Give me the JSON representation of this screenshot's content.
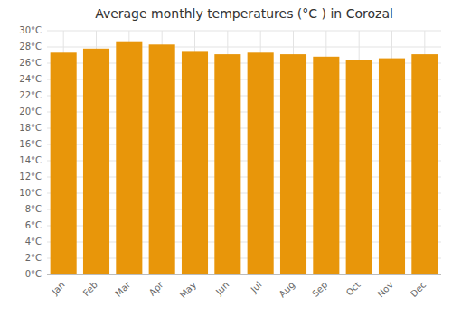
{
  "chart_data": {
    "type": "bar",
    "title": "Average monthly temperatures (°C ) in Corozal",
    "categories": [
      "Jan",
      "Feb",
      "Mar",
      "Apr",
      "May",
      "Jun",
      "Jul",
      "Aug",
      "Sep",
      "Oct",
      "Nov",
      "Dec"
    ],
    "values": [
      27.3,
      27.8,
      28.7,
      28.3,
      27.4,
      27.1,
      27.3,
      27.1,
      26.8,
      26.4,
      26.6,
      27.1
    ],
    "color": "#E8960A",
    "ylim": [
      0,
      30
    ],
    "yticks": [
      {
        "value": 0,
        "label": "0°C"
      },
      {
        "value": 2,
        "label": "2°C"
      },
      {
        "value": 4,
        "label": "4°C"
      },
      {
        "value": 6,
        "label": "6°C"
      },
      {
        "value": 8,
        "label": "8°C"
      },
      {
        "value": 10,
        "label": "10°C"
      },
      {
        "value": 12,
        "label": "12°C"
      },
      {
        "value": 14,
        "label": "14°C"
      },
      {
        "value": 16,
        "label": "16°C"
      },
      {
        "value": 18,
        "label": "18°C"
      },
      {
        "value": 20,
        "label": "20°C"
      },
      {
        "value": 22,
        "label": "22°C"
      },
      {
        "value": 24,
        "label": "24°C"
      },
      {
        "value": 26,
        "label": "26°C"
      },
      {
        "value": 28,
        "label": "28°C"
      },
      {
        "value": 30,
        "label": "30°C"
      }
    ],
    "grid": true
  }
}
